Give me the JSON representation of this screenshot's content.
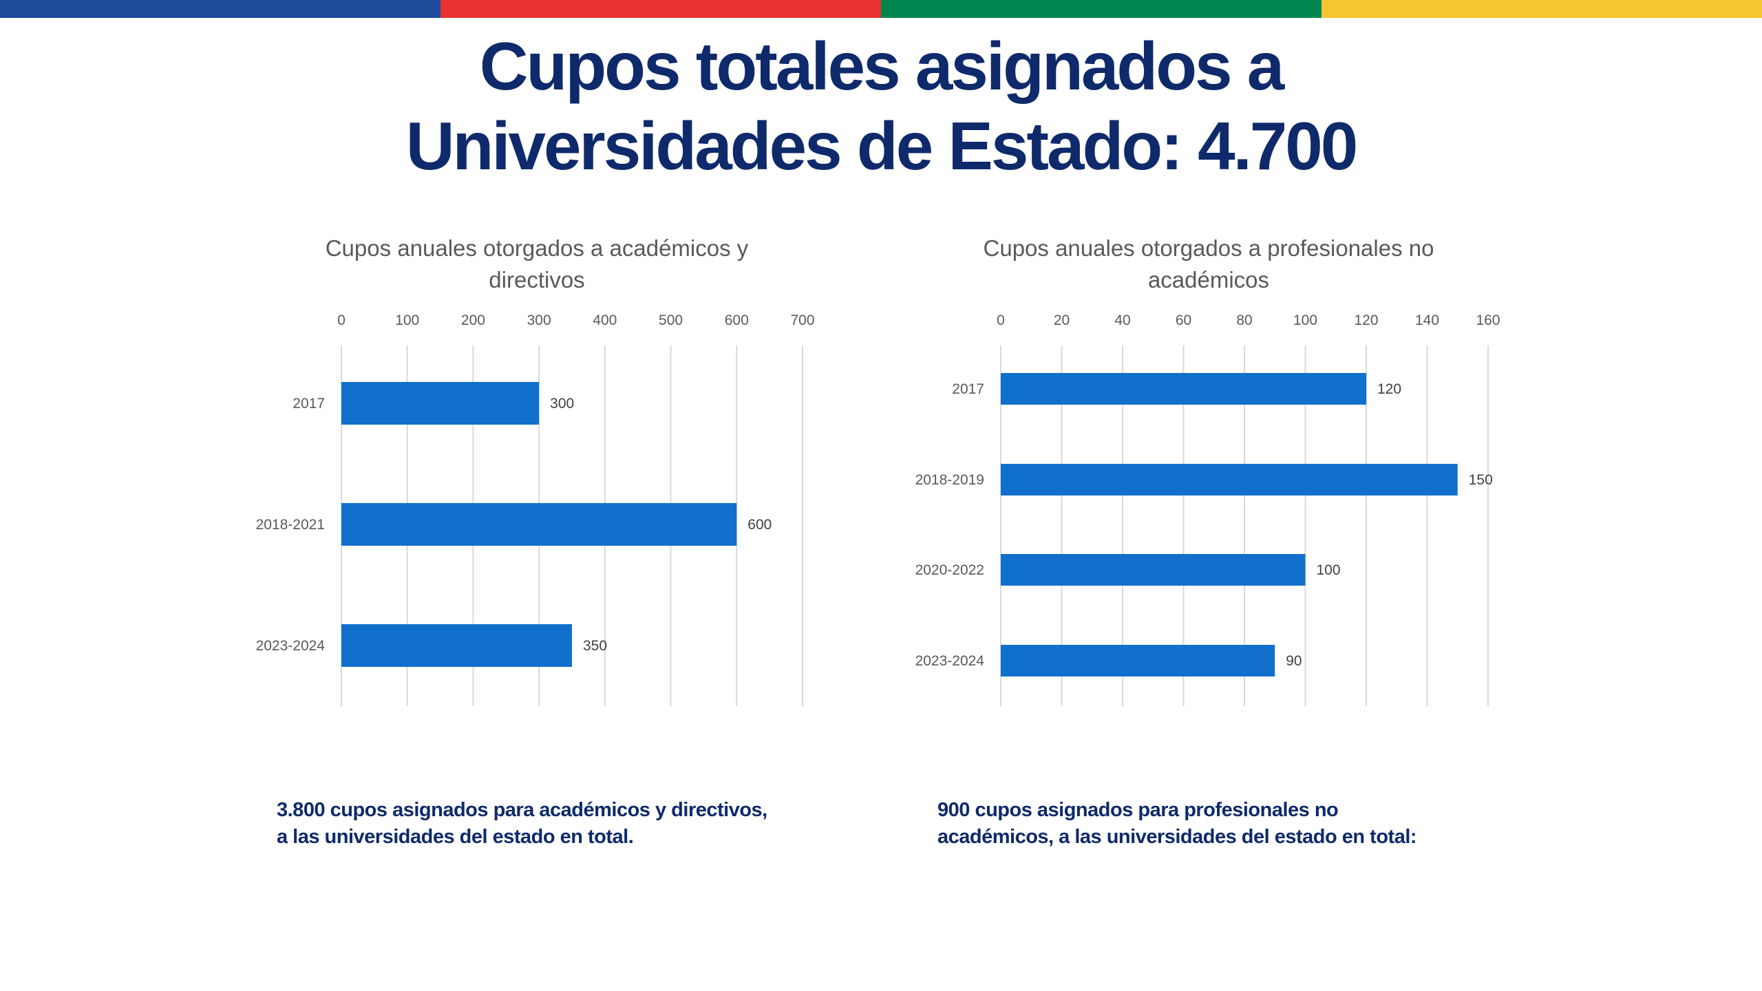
{
  "colors": {
    "band": [
      "#1e4b9b",
      "#e8322f",
      "#00874f",
      "#f6c532"
    ],
    "bar": "#1070cc",
    "title": "#0f2a6b"
  },
  "title": {
    "line1": "Cupos totales asignados a",
    "line2": "Universidades de Estado: 4.700"
  },
  "chart_data": [
    {
      "type": "bar",
      "orientation": "horizontal",
      "title_line1": "Cupos anuales otorgados a académicos y",
      "title_line2": "directivos",
      "categories": [
        "2017",
        "2018-2021",
        "2023-2024"
      ],
      "values": [
        300,
        600,
        350
      ],
      "xlim": [
        0,
        700
      ],
      "ticks": [
        0,
        100,
        200,
        300,
        400,
        500,
        600,
        700
      ],
      "grid": true,
      "axis_position": "top"
    },
    {
      "type": "bar",
      "orientation": "horizontal",
      "title_line1": "Cupos anuales otorgados a profesionales no",
      "title_line2": "académicos",
      "categories": [
        "2017",
        "2018-2019",
        "2020-2022",
        "2023-2024"
      ],
      "values": [
        120,
        150,
        100,
        90
      ],
      "xlim": [
        0,
        160
      ],
      "ticks": [
        0,
        20,
        40,
        60,
        80,
        100,
        120,
        140,
        160
      ],
      "grid": true,
      "axis_position": "top"
    }
  ],
  "summaries": {
    "left": {
      "line1": "3.800 cupos asignados para académicos y directivos,",
      "line2": "a las universidades del estado en total."
    },
    "right": {
      "line1": "900 cupos asignados para profesionales no",
      "line2": "académicos, a las universidades del estado en total:"
    }
  }
}
